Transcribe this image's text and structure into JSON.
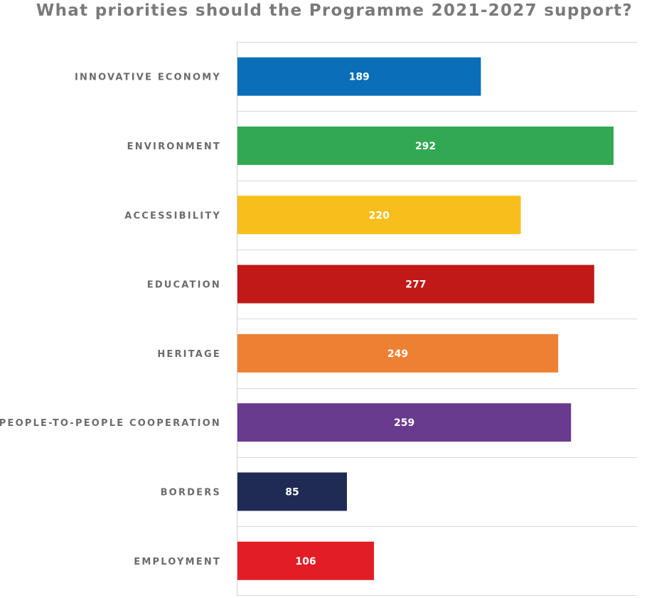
{
  "chart_data": {
    "type": "bar",
    "orientation": "horizontal",
    "title": "What priorities should the Programme 2021-2027 support?",
    "xlabel": "",
    "ylabel": "",
    "categories": [
      "INNOVATIVE ECONOMY",
      "ENVIRONMENT",
      "ACCESSIBILITY",
      "EDUCATION",
      "HERITAGE",
      "PEOPLE-TO-PEOPLE COOPERATION",
      "BORDERS",
      "EMPLOYMENT"
    ],
    "values": [
      189,
      292,
      220,
      277,
      249,
      259,
      85,
      106
    ],
    "colors": [
      "#0a6eb8",
      "#32a852",
      "#f8bf1c",
      "#c11818",
      "#ee8033",
      "#693b8f",
      "#202b55",
      "#e21d25"
    ],
    "xlim": [
      0,
      310
    ],
    "grid": true,
    "legend": "none",
    "data_labels": true
  }
}
